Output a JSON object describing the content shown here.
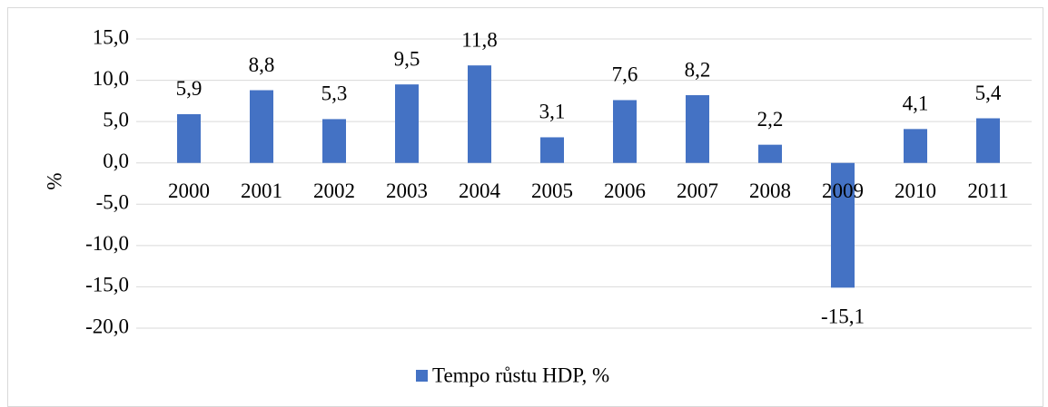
{
  "chart_data": {
    "type": "bar",
    "y_label": "%",
    "categories": [
      "2000",
      "2001",
      "2002",
      "2003",
      "2004",
      "2005",
      "2006",
      "2007",
      "2008",
      "2009",
      "2010",
      "2011"
    ],
    "series": [
      {
        "name": "Tempo růstu HDP, %",
        "color": "#4472c4",
        "values": [
          5.9,
          8.8,
          5.3,
          9.5,
          11.8,
          3.1,
          7.6,
          8.2,
          2.2,
          -15.1,
          4.1,
          5.4
        ],
        "value_labels": [
          "5,9",
          "8,8",
          "5,3",
          "9,5",
          "11,8",
          "3,1",
          "7,6",
          "8,2",
          "2,2",
          "-15,1",
          "4,1",
          "5,4"
        ]
      }
    ],
    "ylim": [
      -20,
      15
    ],
    "yticks": [
      {
        "value": 15,
        "label": "15,0"
      },
      {
        "value": 10,
        "label": "10,0"
      },
      {
        "value": 5,
        "label": "5,0"
      },
      {
        "value": 0,
        "label": "0,0"
      },
      {
        "value": -5,
        "label": "-5,0"
      },
      {
        "value": -10,
        "label": "-10,0"
      },
      {
        "value": -15,
        "label": "-15,0"
      },
      {
        "value": -20,
        "label": "-20,0"
      }
    ],
    "grid": true,
    "legend": "bottom"
  }
}
